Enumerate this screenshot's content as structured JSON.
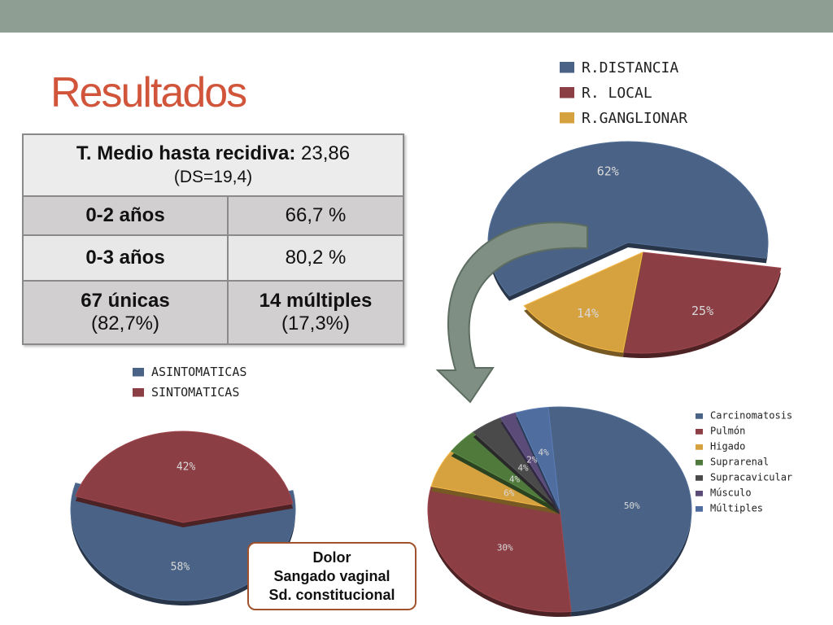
{
  "slide": {
    "title": "Resultados",
    "colors": {
      "topbar": "#8e9e92",
      "title": "#d1553a",
      "arrow": "#7f8f84",
      "callout_border": "#a0522d"
    }
  },
  "table": {
    "header_bold": "T. Medio hasta recidiva:",
    "header_value": "23,86",
    "header_sub": "(DS=19,4)",
    "rows": [
      {
        "label": "0-2 años",
        "value": "66,7 %"
      },
      {
        "label": "0-3 años",
        "value": "80,2 %"
      }
    ],
    "last": {
      "label1": "67 únicas",
      "sub1": "(82,7%)",
      "label2": "14 múltiples",
      "sub2": "(17,3%)"
    }
  },
  "callout": {
    "lines": [
      "Dolor",
      "Sangado vaginal",
      "Sd. constitucional"
    ]
  },
  "chart_data": [
    {
      "type": "pie",
      "title": "",
      "categories": [
        "R.DISTANCIA",
        "R. LOCAL",
        "R.GANGLIONAR"
      ],
      "values": [
        62,
        25,
        14
      ],
      "labels": [
        "62%",
        "25%",
        "14%"
      ],
      "colors": [
        "#4a6285",
        "#8b3e44",
        "#d6a13f"
      ],
      "legend_position": "top-right"
    },
    {
      "type": "pie",
      "title": "",
      "categories": [
        "ASINTOMATICAS",
        "SINTOMATICAS"
      ],
      "values": [
        58,
        42
      ],
      "labels": [
        "58%",
        "42%"
      ],
      "colors": [
        "#4a6285",
        "#8b3e44"
      ],
      "legend_position": "top"
    },
    {
      "type": "pie",
      "title": "",
      "categories": [
        "Carcinomatosis",
        "Pulmón",
        "Higado",
        "Suprarenal",
        "Supracavicular",
        "Músculo",
        "Múltiples"
      ],
      "values": [
        50,
        30,
        6,
        4,
        4,
        2,
        4
      ],
      "labels": [
        "50%",
        "30%",
        "6%",
        "4%",
        "4%",
        "2%",
        "4%"
      ],
      "colors": [
        "#4a6285",
        "#8b3e44",
        "#d6a13f",
        "#4f7a3c",
        "#4a4a4a",
        "#5a4b78",
        "#4f6d9e"
      ],
      "legend_position": "right"
    }
  ]
}
